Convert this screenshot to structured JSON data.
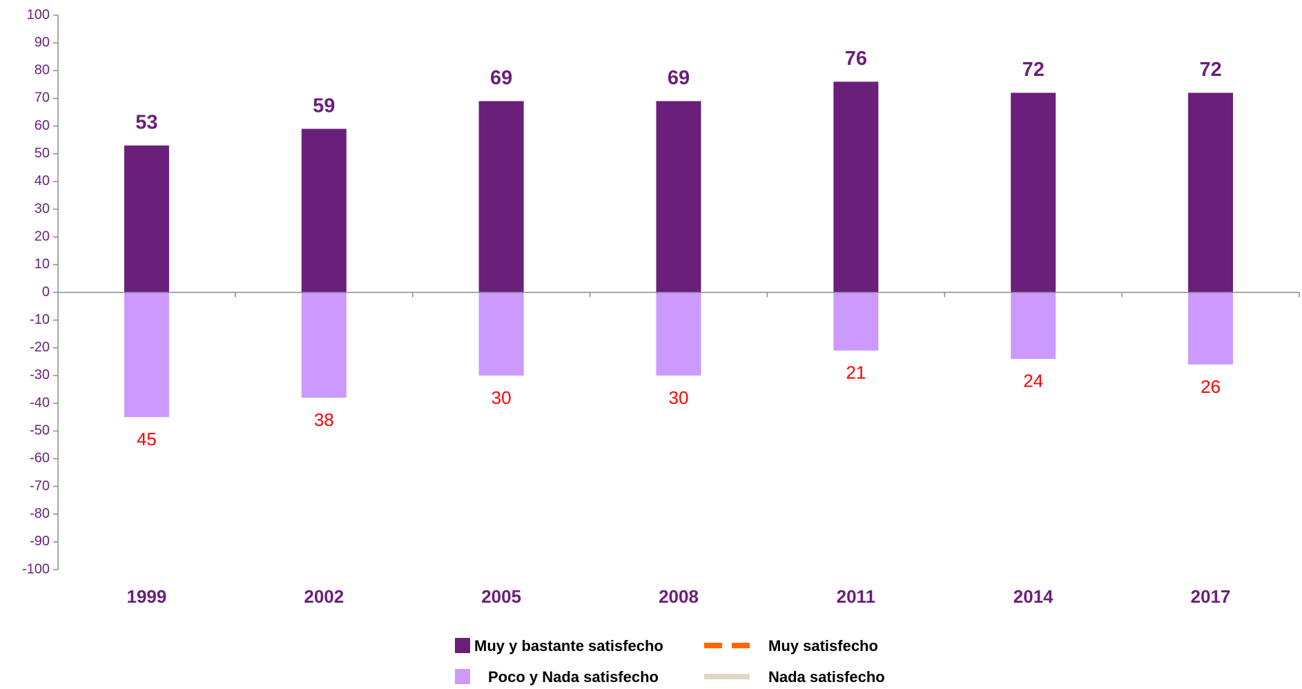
{
  "chart_data": {
    "type": "bar",
    "categories": [
      "1999",
      "2002",
      "2005",
      "2008",
      "2011",
      "2014",
      "2017"
    ],
    "series": [
      {
        "name": "Muy  y bastante satisfecho",
        "color": "#6a1f7a",
        "values": [
          53,
          59,
          69,
          69,
          76,
          72,
          72
        ]
      },
      {
        "name": "Poco y Nada satisfecho",
        "color": "#cc99ff",
        "values": [
          -45,
          -38,
          -30,
          -30,
          -21,
          -24,
          -26
        ],
        "value_labels": [
          "45",
          "38",
          "30",
          "30",
          "21",
          "24",
          "26"
        ],
        "label_color": "#ff0000"
      },
      {
        "name": "Muy satisfecho",
        "type": "line",
        "dashed": true,
        "color": "#ff6600",
        "values": [
          null,
          null,
          null,
          null,
          null,
          null,
          null
        ]
      },
      {
        "name": "Nada satisfecho",
        "type": "line",
        "color": "#ddd9c3",
        "values": [
          null,
          null,
          null,
          null,
          null,
          null,
          null
        ]
      }
    ],
    "ylim": [
      -100,
      100
    ],
    "yticks": [
      -100,
      -90,
      -80,
      -70,
      -60,
      -50,
      -40,
      -30,
      -20,
      -10,
      0,
      10,
      20,
      30,
      40,
      50,
      60,
      70,
      80,
      90,
      100
    ]
  }
}
